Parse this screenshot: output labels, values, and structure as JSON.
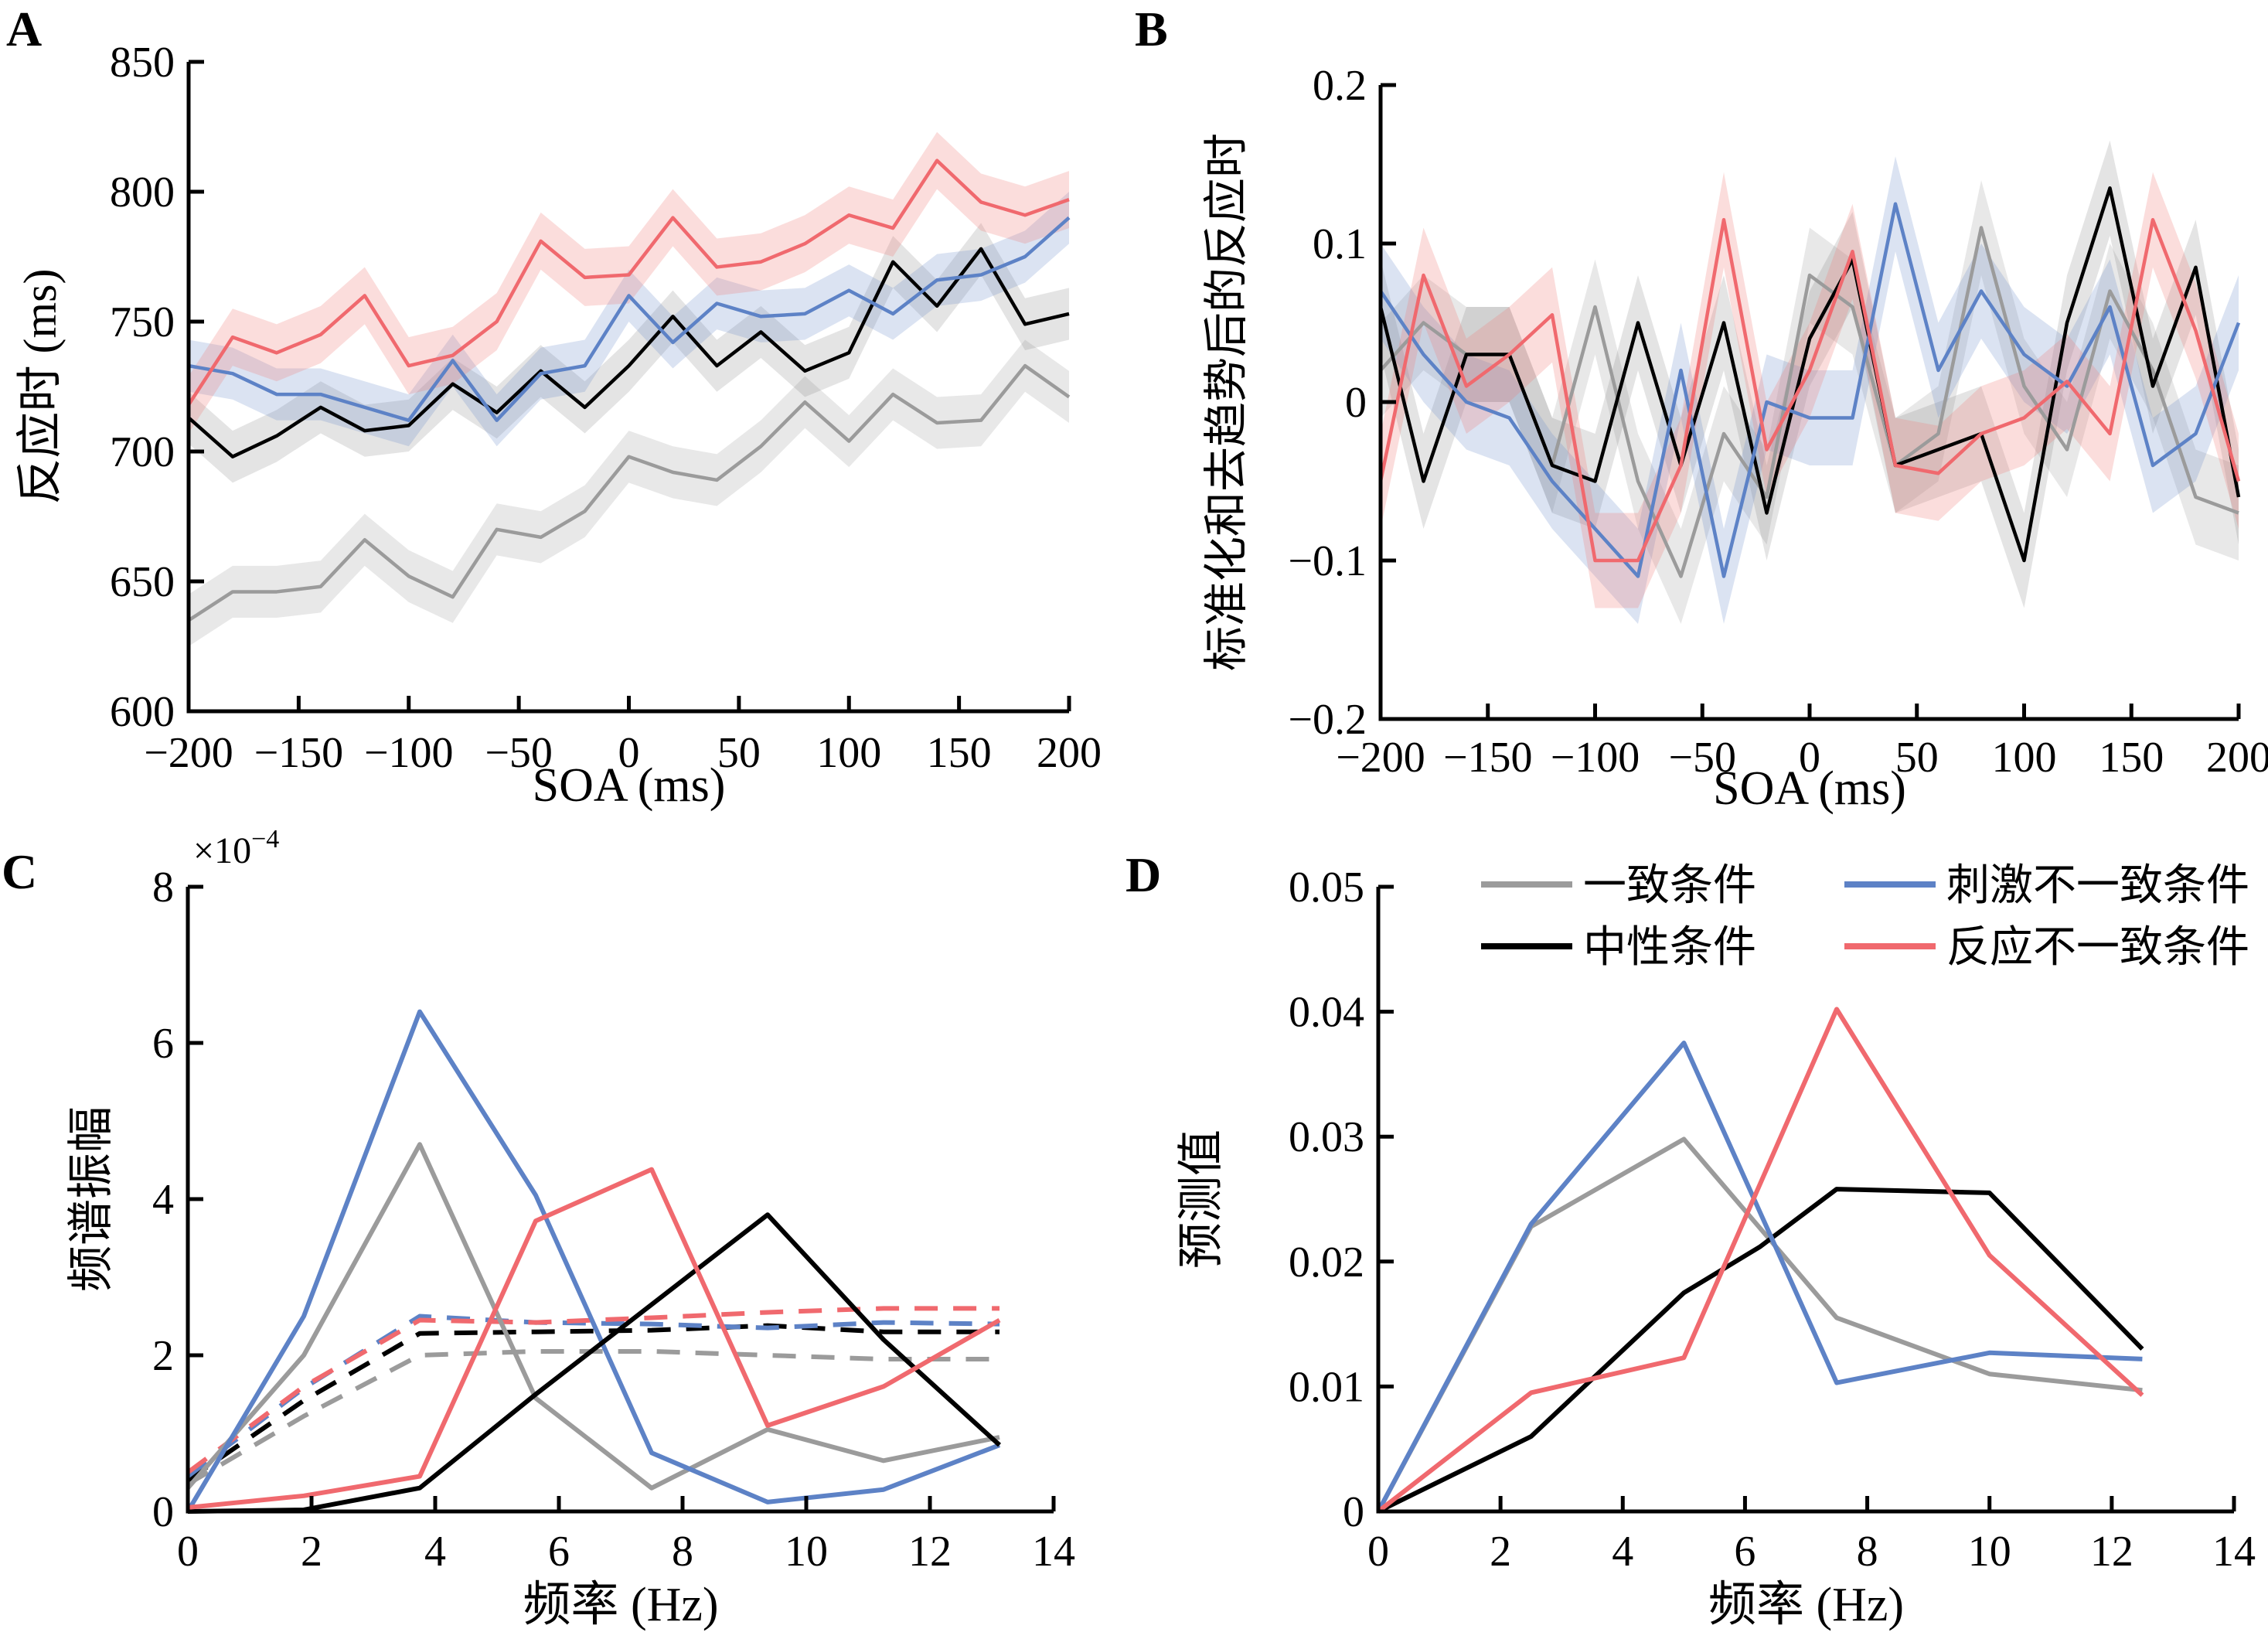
{
  "colors": {
    "line": {
      "gray": "#9b9b9b",
      "black": "#000000",
      "blue": "#5d82c6",
      "red": "#f0696e"
    },
    "band": {
      "gray": "rgba(160,160,160,0.24)",
      "black": "rgba(120,120,120,0.20)",
      "blue": "rgba(104,140,200,0.24)",
      "red": "rgba(240,125,120,0.26)"
    }
  },
  "chart_data": [
    {
      "type": "line",
      "panel_label": "A",
      "xlabel": "SOA (ms)",
      "ylabel": "反应时 (ms)",
      "xlim": [
        -200,
        200
      ],
      "ylim": [
        600,
        850
      ],
      "grid": false,
      "xticks": {
        "values": [
          -200,
          -150,
          -100,
          -50,
          0,
          50,
          100,
          150,
          200
        ],
        "labels": [
          "−200",
          "−150",
          "−100",
          "−50",
          "0",
          "50",
          "100",
          "150",
          "200"
        ]
      },
      "yticks": {
        "values": [
          600,
          650,
          700,
          750,
          800,
          850
        ],
        "labels": [
          "600",
          "650",
          "700",
          "750",
          "800",
          "850"
        ]
      },
      "x": [
        -200,
        -180,
        -160,
        -140,
        -120,
        -100,
        -80,
        -60,
        -40,
        -20,
        0,
        20,
        40,
        60,
        80,
        100,
        120,
        140,
        160,
        180,
        200
      ],
      "series": [
        {
          "name": "一致条件",
          "color": "gray",
          "style": "solid",
          "band": 10,
          "values": [
            635,
            646,
            646,
            648,
            666,
            652,
            644,
            670,
            667,
            677,
            698,
            692,
            689,
            702,
            719,
            704,
            722,
            711,
            712,
            733,
            721
          ]
        },
        {
          "name": "中性条件",
          "color": "black",
          "style": "solid",
          "band": 10,
          "values": [
            713,
            698,
            706,
            717,
            708,
            710,
            726,
            715,
            731,
            717,
            733,
            752,
            733,
            746,
            731,
            738,
            773,
            756,
            778,
            749,
            753
          ]
        },
        {
          "name": "刺激不一致条件",
          "color": "blue",
          "style": "solid",
          "band": 10,
          "values": [
            733,
            730,
            722,
            722,
            717,
            712,
            735,
            712,
            730,
            733,
            760,
            742,
            757,
            752,
            753,
            762,
            753,
            766,
            768,
            775,
            790
          ]
        },
        {
          "name": "反应不一致条件",
          "color": "red",
          "style": "solid",
          "band": 11,
          "values": [
            718,
            744,
            738,
            745,
            760,
            733,
            737,
            750,
            781,
            767,
            768,
            790,
            771,
            773,
            780,
            791,
            786,
            812,
            796,
            791,
            797
          ]
        }
      ]
    },
    {
      "type": "line",
      "panel_label": "B",
      "xlabel": "SOA (ms)",
      "ylabel": "标准化和去趋势后的反应时",
      "xlim": [
        -200,
        200
      ],
      "ylim": [
        -0.2,
        0.2
      ],
      "grid": false,
      "xticks": {
        "values": [
          -200,
          -150,
          -100,
          -50,
          0,
          50,
          100,
          150,
          200
        ],
        "labels": [
          "−200",
          "−150",
          "−100",
          "−50",
          "0",
          "50",
          "100",
          "150",
          "200"
        ]
      },
      "yticks": {
        "values": [
          -0.2,
          -0.1,
          0,
          0.1,
          0.2
        ],
        "labels": [
          "−0.2",
          "−0.1",
          "0",
          "0.1",
          "0.2"
        ]
      },
      "x": [
        -200,
        -180,
        -160,
        -140,
        -120,
        -100,
        -80,
        -60,
        -40,
        -20,
        0,
        20,
        40,
        60,
        80,
        100,
        120,
        140,
        160,
        180,
        200
      ],
      "series": [
        {
          "name": "一致条件",
          "color": "gray",
          "style": "solid",
          "band": 0.03,
          "values": [
            0.02,
            0.05,
            0.03,
            0.03,
            -0.04,
            0.06,
            -0.05,
            -0.11,
            -0.02,
            -0.06,
            0.08,
            0.06,
            -0.04,
            -0.02,
            0.11,
            0.01,
            -0.03,
            0.07,
            0.02,
            -0.06,
            -0.07
          ]
        },
        {
          "name": "中性条件",
          "color": "black",
          "style": "solid",
          "band": 0.03,
          "values": [
            0.06,
            -0.05,
            0.03,
            0.03,
            -0.04,
            -0.05,
            0.05,
            -0.04,
            0.05,
            -0.07,
            0.04,
            0.09,
            -0.04,
            -0.03,
            -0.02,
            -0.1,
            0.05,
            0.135,
            0.01,
            0.085,
            -0.06
          ]
        },
        {
          "name": "刺激不一致条件",
          "color": "blue",
          "style": "solid",
          "band": 0.03,
          "values": [
            0.07,
            0.03,
            0,
            -0.01,
            -0.05,
            -0.08,
            -0.11,
            0.02,
            -0.11,
            0,
            -0.01,
            -0.01,
            0.125,
            0.02,
            0.07,
            0.03,
            0.01,
            0.06,
            -0.04,
            -0.02,
            0.05
          ]
        },
        {
          "name": "反应不一致条件",
          "color": "red",
          "style": "solid",
          "band": 0.03,
          "values": [
            -0.05,
            0.08,
            0.01,
            0.03,
            0.055,
            -0.1,
            -0.1,
            -0.04,
            0.115,
            -0.03,
            0.02,
            0.095,
            -0.04,
            -0.045,
            -0.02,
            -0.01,
            0.013,
            -0.02,
            0.115,
            0.045,
            -0.05
          ]
        }
      ]
    },
    {
      "type": "line",
      "panel_label": "C",
      "xlabel": "频率  (Hz)",
      "ylabel": "频谱振幅",
      "y_multiplier": {
        "base": "×10",
        "exp": "−4"
      },
      "xlim": [
        0,
        14
      ],
      "ylim": [
        0,
        8
      ],
      "grid": false,
      "xticks": {
        "values": [
          0,
          2,
          4,
          6,
          8,
          10,
          12,
          14
        ],
        "labels": [
          "0",
          "2",
          "4",
          "6",
          "8",
          "10",
          "12",
          "14"
        ]
      },
      "yticks": {
        "values": [
          0,
          2,
          4,
          6,
          8
        ],
        "labels": [
          "0",
          "2",
          "4",
          "6",
          "8"
        ]
      },
      "x": [
        0,
        1.875,
        3.75,
        5.625,
        7.5,
        9.375,
        11.25,
        13.125
      ],
      "series": [
        {
          "name": "一致条件",
          "color": "gray",
          "style": "dashed",
          "band": 0,
          "values": [
            0.35,
            1.22,
            2.0,
            2.05,
            2.05,
            2.0,
            1.95,
            1.95
          ]
        },
        {
          "name": "中性条件",
          "color": "black",
          "style": "dashed",
          "band": 0,
          "values": [
            0.4,
            1.42,
            2.28,
            2.3,
            2.32,
            2.38,
            2.3,
            2.3
          ]
        },
        {
          "name": "刺激不一致条件",
          "color": "blue",
          "style": "dashed",
          "band": 0,
          "values": [
            0.45,
            1.58,
            2.5,
            2.42,
            2.4,
            2.35,
            2.42,
            2.4
          ]
        },
        {
          "name": "反应不一致条件",
          "color": "red",
          "style": "dashed",
          "band": 0,
          "values": [
            0.5,
            1.6,
            2.45,
            2.42,
            2.48,
            2.55,
            2.6,
            2.6
          ]
        },
        {
          "name": "一致条件",
          "color": "gray",
          "style": "solid",
          "band": 0,
          "values": [
            0.3,
            2.0,
            4.7,
            1.45,
            0.3,
            1.05,
            0.65,
            0.95
          ]
        },
        {
          "name": "刺激不一致条件",
          "color": "blue",
          "style": "solid",
          "band": 0,
          "values": [
            0,
            2.5,
            6.4,
            4.05,
            0.75,
            0.12,
            0.28,
            0.85
          ]
        },
        {
          "name": "中性条件",
          "color": "black",
          "style": "solid",
          "band": 0,
          "values": [
            0,
            0.02,
            0.3,
            1.5,
            2.65,
            3.8,
            2.2,
            0.85
          ]
        },
        {
          "name": "反应不一致条件",
          "color": "red",
          "style": "solid",
          "band": 0,
          "values": [
            0.05,
            0.2,
            0.45,
            3.72,
            4.38,
            1.1,
            1.6,
            2.45
          ]
        }
      ]
    },
    {
      "type": "line",
      "panel_label": "D",
      "xlabel": "频率  (Hz)",
      "ylabel": "预测值",
      "xlim": [
        0,
        14
      ],
      "ylim": [
        0,
        0.05
      ],
      "grid": false,
      "xticks": {
        "values": [
          0,
          2,
          4,
          6,
          8,
          10,
          12,
          14
        ],
        "labels": [
          "0",
          "2",
          "4",
          "6",
          "8",
          "10",
          "12",
          "14"
        ]
      },
      "yticks": {
        "values": [
          0,
          0.01,
          0.02,
          0.03,
          0.04,
          0.05
        ],
        "labels": [
          "0",
          "0.01",
          "0.02",
          "0.03",
          "0.04",
          "0.05"
        ]
      },
      "x": [
        0,
        2.5,
        5,
        7.5,
        10,
        12.5
      ],
      "series": [
        {
          "name": "一致条件",
          "color": "gray",
          "style": "solid",
          "band": 0,
          "values": [
            0,
            0.0228,
            0.0298,
            0.0155,
            0.011,
            0.0097
          ]
        },
        {
          "name": "中性条件",
          "color": "black",
          "style": "solid",
          "band": 0,
          "x": [
            0,
            2.5,
            5,
            6.25,
            7.5,
            10,
            12.5
          ],
          "values": [
            0,
            0.006,
            0.0175,
            0.0212,
            0.0258,
            0.0255,
            0.013
          ]
        },
        {
          "name": "刺激不一致条件",
          "color": "blue",
          "style": "solid",
          "band": 0,
          "values": [
            0,
            0.023,
            0.0375,
            0.0103,
            0.0127,
            0.0122
          ]
        },
        {
          "name": "反应不一致条件",
          "color": "red",
          "style": "solid",
          "band": 0,
          "values": [
            0,
            0.0095,
            0.0123,
            0.0402,
            0.0205,
            0.0093
          ]
        }
      ],
      "legend": {
        "items": [
          {
            "label": "一致条件",
            "color": "gray"
          },
          {
            "label": "刺激不一致条件",
            "color": "blue"
          },
          {
            "label": "中性条件",
            "color": "black"
          },
          {
            "label": "反应不一致条件",
            "color": "red"
          }
        ]
      }
    }
  ]
}
